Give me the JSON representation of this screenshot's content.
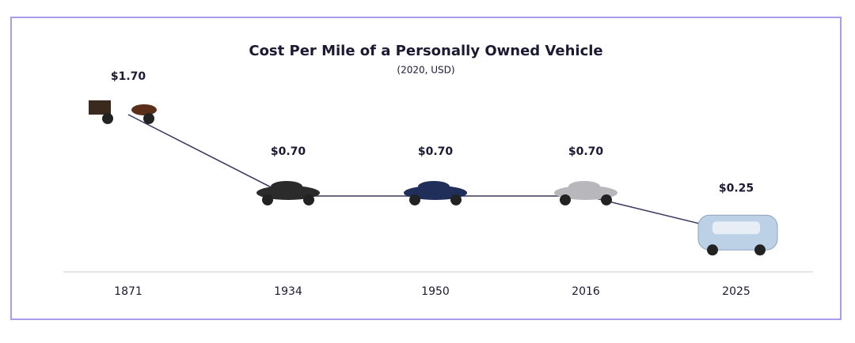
{
  "chart_data": {
    "type": "line",
    "title": "Cost Per Mile of a Personally Owned Vehicle",
    "subtitle": "(2020, USD)",
    "categories": [
      "1871",
      "1934",
      "1950",
      "2016",
      "2025"
    ],
    "values": [
      1.7,
      0.7,
      0.7,
      0.7,
      0.25
    ],
    "value_labels": [
      "$1.70",
      "$0.70",
      "$0.70",
      "$0.70",
      "$0.25"
    ],
    "color": "#3b3760"
  }
}
